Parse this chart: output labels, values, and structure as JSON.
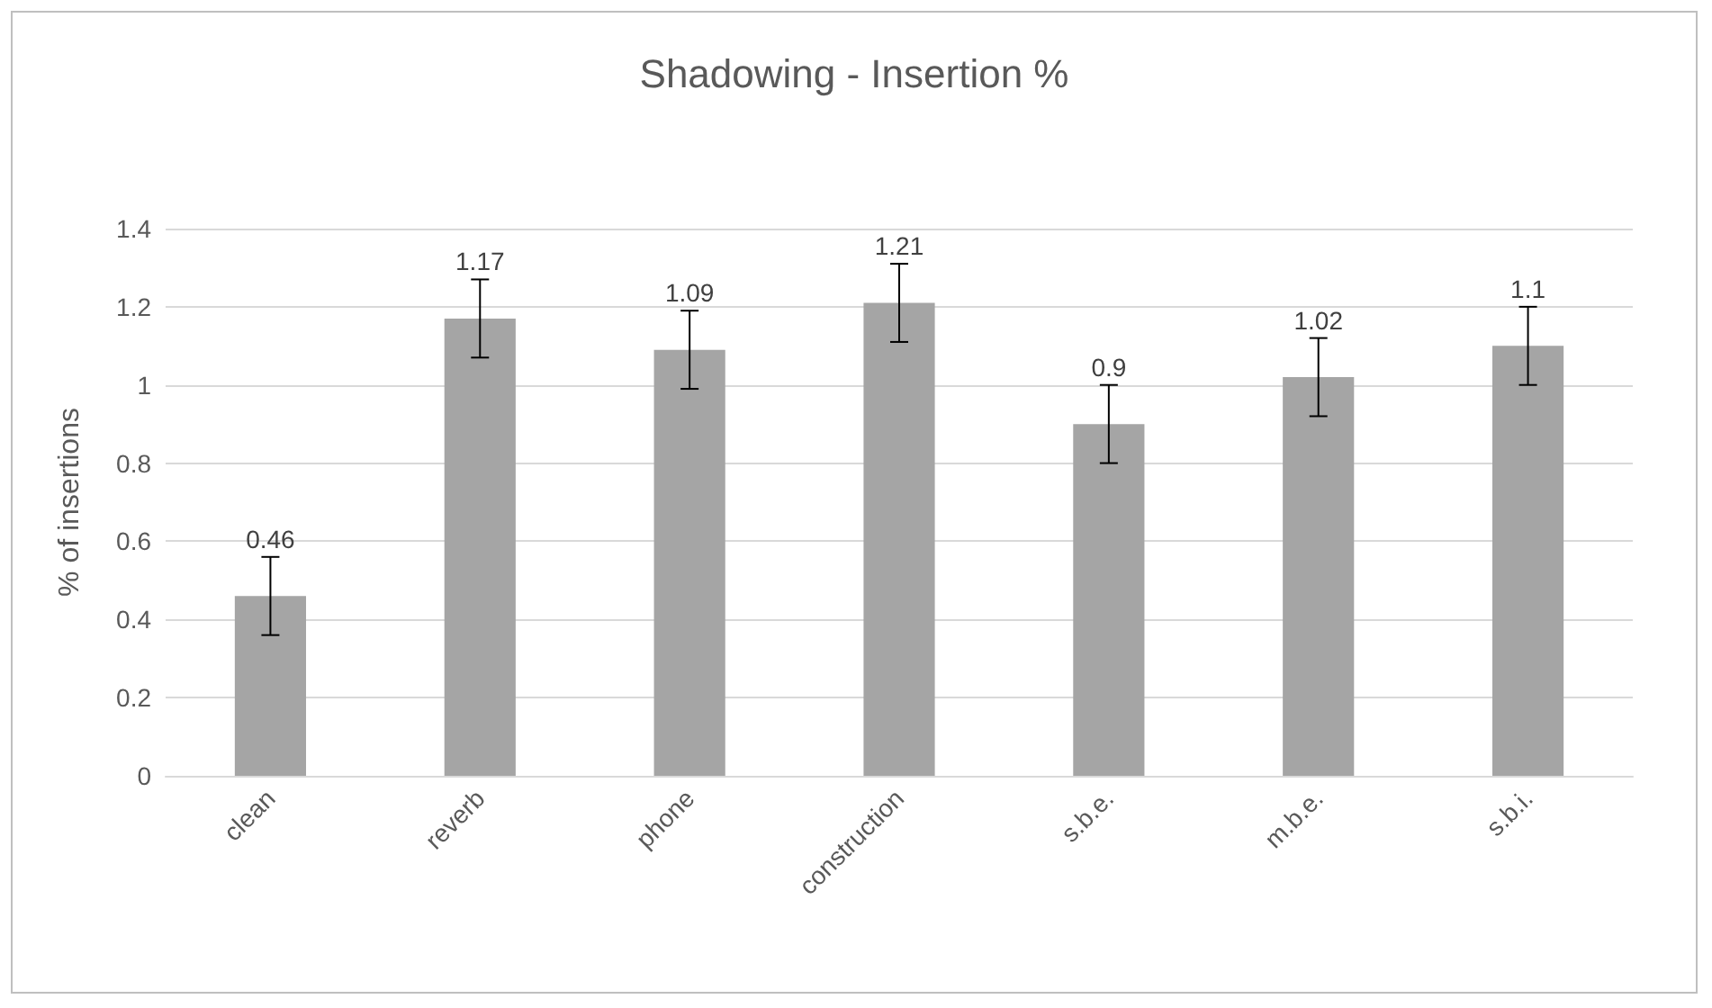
{
  "chart_data": {
    "type": "bar",
    "title": "Shadowing - Insertion %",
    "ylabel": "% of insertions",
    "categories": [
      "clean",
      "reverb",
      "phone",
      "construction",
      "s.b.e.",
      "m.b.e.",
      "s.b.i."
    ],
    "values": [
      0.46,
      1.17,
      1.09,
      1.21,
      0.9,
      1.02,
      1.1
    ],
    "errors": [
      0.1,
      0.1,
      0.1,
      0.1,
      0.1,
      0.1,
      0.1
    ],
    "color": "#a5a5a5",
    "ylim": [
      0,
      1.4
    ],
    "yticks": [
      0,
      0.2,
      0.4,
      0.6,
      0.8,
      1,
      1.2,
      1.4
    ],
    "grid": "y",
    "data_labels": true
  }
}
